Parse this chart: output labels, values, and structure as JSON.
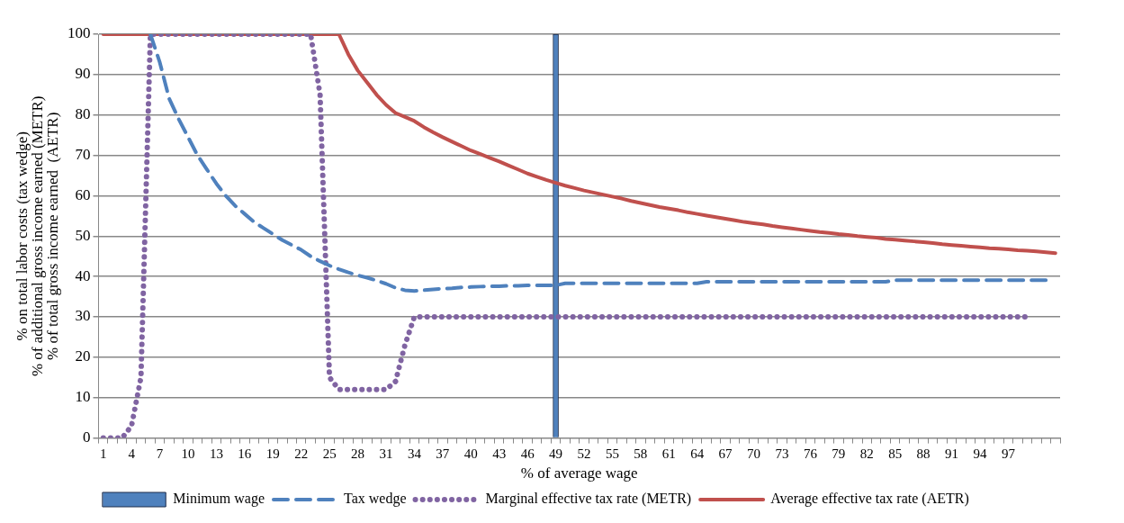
{
  "chart_data": {
    "type": "line",
    "xlabel": "% of average wage",
    "ylabel": "% on total labor costs (tax wedge)\n% of additional gross income earned (METR)\n% of total gross income earned  (AETR)",
    "categories": [
      "1",
      null,
      null,
      "4",
      null,
      null,
      "7",
      null,
      null,
      "10",
      null,
      null,
      "13",
      null,
      null,
      "16",
      null,
      null,
      "19",
      null,
      null,
      "22",
      null,
      null,
      "25",
      null,
      null,
      "28",
      null,
      null,
      "31",
      null,
      null,
      "34",
      null,
      null,
      "37",
      null,
      null,
      "40",
      null,
      null,
      "43",
      null,
      null,
      "46",
      null,
      null,
      "49",
      null,
      null,
      "52",
      null,
      null,
      "55",
      null,
      null,
      "58",
      null,
      null,
      "61",
      null,
      null,
      "64",
      null,
      null,
      "67",
      null,
      null,
      "70",
      null,
      null,
      "73",
      null,
      null,
      "76",
      null,
      null,
      "79",
      null,
      null,
      "82",
      null,
      null,
      "85",
      null,
      null,
      "88",
      null,
      null,
      "91",
      null,
      null,
      "94",
      null,
      null,
      "97",
      null,
      null,
      null,
      null,
      null
    ],
    "ylim": [
      0,
      100
    ],
    "yticks": [
      0,
      10,
      20,
      30,
      40,
      50,
      60,
      70,
      80,
      90,
      100
    ],
    "grid": "y",
    "legend": "bottom",
    "marker": "none",
    "series": [
      {
        "name": "Minimum wage",
        "type": "bar",
        "color": "#4f81bd",
        "values": [
          null,
          null,
          null,
          null,
          null,
          null,
          null,
          null,
          null,
          null,
          null,
          null,
          null,
          null,
          null,
          null,
          null,
          null,
          null,
          null,
          null,
          null,
          null,
          null,
          null,
          null,
          null,
          null,
          null,
          null,
          null,
          null,
          null,
          null,
          null,
          null,
          null,
          null,
          null,
          null,
          null,
          null,
          null,
          null,
          null,
          null,
          null,
          null,
          100,
          null,
          null,
          null,
          null,
          null,
          null,
          null,
          null,
          null,
          null,
          null,
          null,
          null,
          null,
          null,
          null,
          null,
          null,
          null,
          null,
          null,
          null,
          null,
          null,
          null,
          null,
          null,
          null,
          null,
          null,
          null,
          null,
          null,
          null,
          null,
          null,
          null,
          null,
          null,
          null,
          null,
          null,
          null,
          null,
          null,
          null,
          null,
          null,
          null,
          null,
          null,
          null,
          null
        ]
      },
      {
        "name": "Tax wedge",
        "line_style": "dashed",
        "color": "#4f81bd",
        "values": [
          null,
          null,
          null,
          null,
          null,
          100,
          93,
          84,
          79,
          74.5,
          70,
          66.5,
          63,
          60,
          57.5,
          55.5,
          53.5,
          52,
          50.5,
          49,
          47.8,
          46.6,
          45,
          43.8,
          42.7,
          41.8,
          41,
          40.3,
          39.7,
          39,
          38.2,
          37.2,
          36.6,
          36.4,
          36.6,
          36.8,
          37,
          37.1,
          37.3,
          37.4,
          37.5,
          37.6,
          37.6,
          37.7,
          37.7,
          37.8,
          37.8,
          37.8,
          37.8,
          38.3,
          38.3,
          38.3,
          38.3,
          38.3,
          38.3,
          38.3,
          38.3,
          38.3,
          38.3,
          38.3,
          38.3,
          38.3,
          38.3,
          38.3,
          38.7,
          38.7,
          38.7,
          38.7,
          38.7,
          38.7,
          38.7,
          38.7,
          38.7,
          38.7,
          38.7,
          38.7,
          38.7,
          38.7,
          38.7,
          38.7,
          38.7,
          38.7,
          38.7,
          38.7,
          39.1,
          39.1,
          39.1,
          39.1,
          39.1,
          39.1,
          39.1,
          39.1,
          39.1,
          39.1,
          39.1,
          39.1,
          39.1,
          39.1,
          39.1,
          39.1,
          39.1,
          null
        ]
      },
      {
        "name": "Marginal effective tax rate (METR)",
        "line_style": "dotted",
        "color": "#8064a2",
        "values": [
          0,
          0,
          0,
          3,
          15,
          100,
          100,
          100,
          100,
          100,
          100,
          100,
          100,
          100,
          100,
          100,
          100,
          100,
          100,
          100,
          100,
          100,
          100,
          85,
          15,
          12,
          12,
          12,
          12,
          12,
          12,
          14,
          23,
          30,
          30,
          30,
          30,
          30,
          30,
          30,
          30,
          30,
          30,
          30,
          30,
          30,
          30,
          30,
          30,
          30,
          30,
          30,
          30,
          30,
          30,
          30,
          30,
          30,
          30,
          30,
          30,
          30,
          30,
          30,
          30,
          30,
          30,
          30,
          30,
          30,
          30,
          30,
          30,
          30,
          30,
          30,
          30,
          30,
          30,
          30,
          30,
          30,
          30,
          30,
          30,
          30,
          30,
          30,
          30,
          30,
          30,
          30,
          30,
          30,
          30,
          30,
          30,
          30,
          30,
          null,
          null,
          null
        ]
      },
      {
        "name": "Average effective tax rate (AETR)",
        "line_style": "solid",
        "color": "#c0504d",
        "values": [
          100,
          100,
          100,
          100,
          100,
          100,
          100,
          100,
          100,
          100,
          100,
          100,
          100,
          100,
          100,
          100,
          100,
          100,
          100,
          100,
          100,
          100,
          100,
          100,
          100,
          100,
          95,
          91,
          88,
          85,
          82.5,
          80.5,
          79.5,
          78.5,
          77,
          75.7,
          74.5,
          73.4,
          72.3,
          71.2,
          70.3,
          69.4,
          68.5,
          67.5,
          66.5,
          65.5,
          64.7,
          63.9,
          63.2,
          62.5,
          61.9,
          61.3,
          60.8,
          60.3,
          59.8,
          59.3,
          58.7,
          58.2,
          57.7,
          57.2,
          56.8,
          56.4,
          55.9,
          55.5,
          55.1,
          54.7,
          54.3,
          53.9,
          53.5,
          53.2,
          52.9,
          52.5,
          52.2,
          51.9,
          51.6,
          51.3,
          51,
          50.8,
          50.5,
          50.3,
          50,
          49.8,
          49.6,
          49.3,
          49.1,
          48.9,
          48.7,
          48.5,
          48.3,
          48,
          47.8,
          47.6,
          47.4,
          47.2,
          47,
          46.9,
          46.7,
          46.5,
          46.4,
          46.2,
          46,
          45.8
        ]
      }
    ]
  }
}
